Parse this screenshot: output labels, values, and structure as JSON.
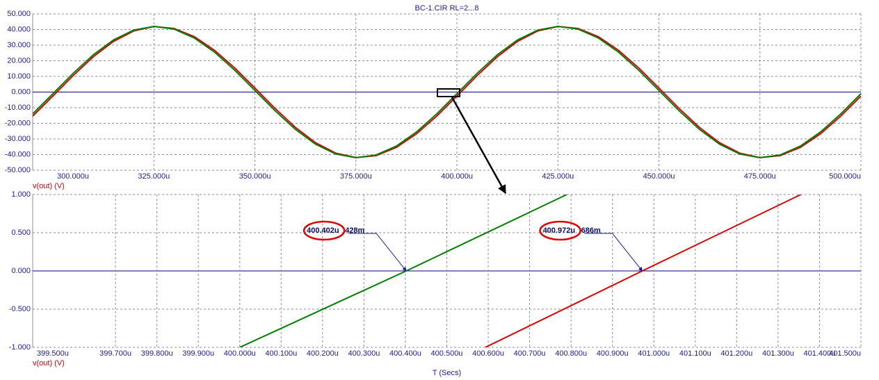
{
  "chart_data": [
    {
      "type": "line",
      "title": "BC-1.CIR RL=2...8",
      "ylabel": "v(out) (V)",
      "ylabel_color": "#e00000",
      "zero_line_color": "#000080",
      "grid": true,
      "x": [
        295,
        300,
        305,
        310,
        315,
        320,
        325,
        330,
        335,
        340,
        345,
        350,
        355,
        360,
        365,
        370,
        375,
        380,
        385,
        390,
        395,
        400,
        405,
        410,
        415,
        420,
        425,
        430,
        435,
        440,
        445,
        450,
        455,
        460,
        465,
        470,
        475,
        480,
        485,
        490,
        495,
        500
      ],
      "xlim": [
        295,
        500
      ],
      "xticks": [
        {
          "value": 300,
          "label": "300.000u"
        },
        {
          "value": 325,
          "label": "325.000u"
        },
        {
          "value": 350,
          "label": "350.000u"
        },
        {
          "value": 375,
          "label": "375.000u"
        },
        {
          "value": 400,
          "label": "400.000u"
        },
        {
          "value": 425,
          "label": "425.000u"
        },
        {
          "value": 450,
          "label": "450.000u"
        },
        {
          "value": 475,
          "label": "475.000u"
        },
        {
          "value": 500,
          "label": "500.000u"
        }
      ],
      "ylim": [
        -50,
        50
      ],
      "yticks": [
        {
          "value": -50,
          "label": "-50.000"
        },
        {
          "value": -40,
          "label": "-40.000"
        },
        {
          "value": -30,
          "label": "-30.000"
        },
        {
          "value": -20,
          "label": "-20.000"
        },
        {
          "value": -10,
          "label": "-10.000"
        },
        {
          "value": 0,
          "label": "0.000"
        },
        {
          "value": 10,
          "label": "10.000"
        },
        {
          "value": 20,
          "label": "20.000"
        },
        {
          "value": 30,
          "label": "30.000"
        },
        {
          "value": 40,
          "label": "40.000"
        },
        {
          "value": 50,
          "label": "50.000"
        }
      ],
      "series": [
        {
          "color": "#e00000",
          "values": [
            -15.39,
            -2.56,
            10.52,
            22.57,
            32.41,
            39.08,
            41.92,
            40.66,
            35.42,
            26.7,
            15.39,
            2.56,
            -10.52,
            -22.57,
            -32.41,
            -39.08,
            -41.92,
            -40.66,
            -35.42,
            -26.7,
            -15.39,
            -2.56,
            10.52,
            22.57,
            32.41,
            39.08,
            41.92,
            40.66,
            35.42,
            26.7,
            15.39,
            2.56,
            -10.52,
            -22.57,
            -32.41,
            -39.08,
            -41.92,
            -40.66,
            -35.42,
            -26.7,
            -15.39,
            -2.56
          ]
        },
        {
          "color": "#008000",
          "values": [
            -13.98,
            -1.06,
            11.97,
            23.82,
            33.35,
            39.61,
            41.99,
            40.26,
            34.59,
            25.54,
            13.98,
            1.06,
            -11.97,
            -23.82,
            -33.35,
            -39.61,
            -41.99,
            -40.26,
            -34.59,
            -25.54,
            -13.98,
            -1.06,
            11.97,
            23.82,
            33.35,
            39.61,
            41.99,
            40.26,
            34.59,
            25.54,
            13.98,
            1.06,
            -11.97,
            -23.82,
            -33.35,
            -39.61,
            -41.99,
            -40.26,
            -34.59,
            -25.54,
            -13.98,
            -1.06
          ]
        }
      ]
    },
    {
      "type": "line",
      "ylabel": "v(out) (V)",
      "ylabel_color": "#e00000",
      "xlabel": "T (Secs)",
      "zero_line_color": "#000080",
      "grid": true,
      "xlim": [
        399.5,
        401.5
      ],
      "xticks": [
        {
          "value": 399.5,
          "label": "399.500u"
        },
        {
          "value": 399.7,
          "label": "399.700u"
        },
        {
          "value": 399.8,
          "label": "399.800u"
        },
        {
          "value": 399.9,
          "label": "399.900u"
        },
        {
          "value": 400.0,
          "label": "400.000u"
        },
        {
          "value": 400.1,
          "label": "400.100u"
        },
        {
          "value": 400.2,
          "label": "400.200u"
        },
        {
          "value": 400.3,
          "label": "400.300u"
        },
        {
          "value": 400.4,
          "label": "400.400u"
        },
        {
          "value": 400.5,
          "label": "400.500u"
        },
        {
          "value": 400.6,
          "label": "400.600u"
        },
        {
          "value": 400.7,
          "label": "400.700u"
        },
        {
          "value": 400.8,
          "label": "400.800u"
        },
        {
          "value": 400.9,
          "label": "400.900u"
        },
        {
          "value": 401.0,
          "label": "401.000u"
        },
        {
          "value": 401.1,
          "label": "401.100u"
        },
        {
          "value": 401.2,
          "label": "401.200u"
        },
        {
          "value": 401.3,
          "label": "401.300u"
        },
        {
          "value": 401.4,
          "label": "401.400u"
        },
        {
          "value": 401.5,
          "label": "401.500u"
        }
      ],
      "ylim": [
        -1,
        1
      ],
      "yticks": [
        {
          "value": -1,
          "label": "-1.000"
        },
        {
          "value": -0.5,
          "label": "-0.500"
        },
        {
          "value": 0,
          "label": "0.000"
        },
        {
          "value": 0.5,
          "label": "0.500"
        },
        {
          "value": 1,
          "label": "1.000"
        }
      ],
      "series": [
        {
          "color": "#008000",
          "x": [
            400.0,
            400.402,
            400.79
          ],
          "values": [
            -1.0,
            0.0,
            1.0
          ]
        },
        {
          "color": "#e00000",
          "x": [
            400.593,
            400.972,
            401.355
          ],
          "values": [
            -1.0,
            0.0,
            1.0
          ]
        }
      ],
      "annotations": [
        {
          "x": 400.402,
          "y": 0,
          "label": "400.402u",
          "value_label": ".428m",
          "circle_color": "#e00000"
        },
        {
          "x": 400.972,
          "y": 0,
          "label": "400.972u",
          "value_label": ".686m",
          "circle_color": "#e00000"
        }
      ]
    }
  ]
}
